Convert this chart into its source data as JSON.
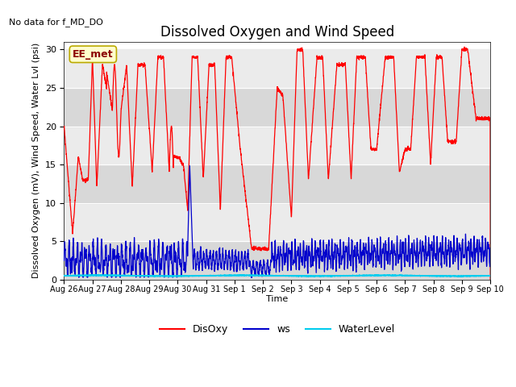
{
  "title": "Dissolved Oxygen and Wind Speed",
  "top_left_text": "No data for f_MD_DO",
  "ylabel": "Dissolved Oxygen (mV), Wind Speed, Water Lvl (psi)",
  "xlabel": "Time",
  "annotation_text": "EE_met",
  "ylim": [
    0,
    31
  ],
  "xtick_labels": [
    "Aug 26",
    "Aug 27",
    "Aug 28",
    "Aug 29",
    "Aug 30",
    "Aug 31",
    "Sep 1",
    "Sep 2",
    "Sep 3",
    "Sep 4",
    "Sep 5",
    "Sep 6",
    "Sep 7",
    "Sep 8",
    "Sep 9",
    "Sep 10"
  ],
  "line_colors": {
    "DisOxy": "#ff0000",
    "ws": "#0000cc",
    "WaterLevel": "#00ccee"
  },
  "background_color": "#ffffff",
  "plot_bg_light": "#ebebeb",
  "plot_bg_dark": "#d8d8d8",
  "title_fontsize": 12,
  "label_fontsize": 8,
  "tick_fontsize": 8
}
